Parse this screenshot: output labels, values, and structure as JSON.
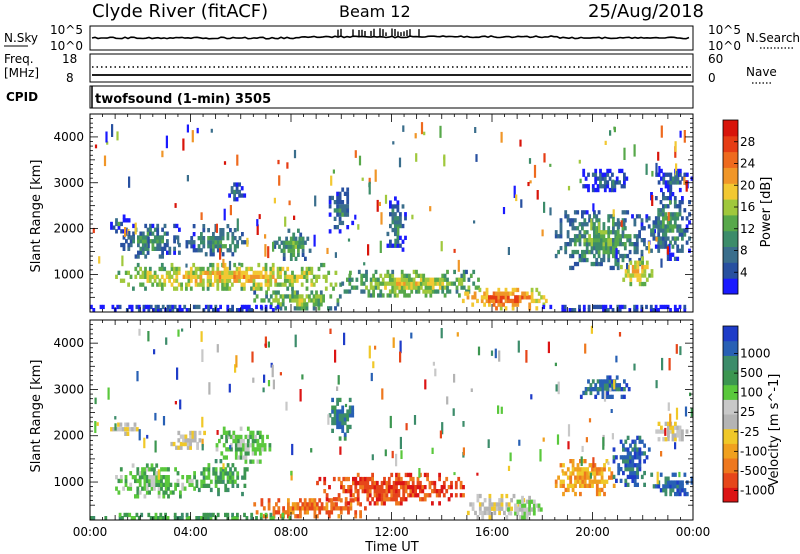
{
  "header": {
    "station": "Clyde River (fitACF)",
    "beam": "Beam 12",
    "date": "25/Aug/2018"
  },
  "nsky_panel": {
    "left_label": "N.Sky",
    "right_label": "N.Search",
    "left_ticks": [
      "10^5",
      "10^0"
    ],
    "right_ticks": [
      "10^5",
      "10^0"
    ]
  },
  "freq_panel": {
    "left_label_1": "Freq.",
    "left_label_2": "[MHz]",
    "left_ticks": [
      "18",
      "8"
    ],
    "right_ticks": [
      "60",
      "0"
    ],
    "right_label": "Nave"
  },
  "cpid_panel": {
    "label": "CPID",
    "text": "twofsound (1-min) 3505"
  },
  "chart_data": [
    {
      "type": "heatmap",
      "title": "",
      "xlabel": "",
      "ylabel": "Slant Range [km]",
      "x_ticks": [
        "00:00",
        "04:00",
        "08:00",
        "12:00",
        "16:00",
        "20:00",
        "00:00"
      ],
      "xlim_hours": [
        0,
        24
      ],
      "y_ticks": [
        1000,
        2000,
        3000,
        4000
      ],
      "ylim_km": [
        180,
        4500
      ],
      "colorbar": {
        "label": "Power [dB]",
        "ticks": [
          4,
          8,
          12,
          16,
          20,
          24,
          28
        ],
        "range": [
          0,
          32
        ],
        "colors": [
          "#1a1aff",
          "#2850a0",
          "#3a6e8c",
          "#3c8c6a",
          "#57a84a",
          "#a0c83c",
          "#f2c832",
          "#f09628",
          "#ee6a1e",
          "#e63c14",
          "#d8140a"
        ]
      },
      "regions": [
        {
          "t0": 1.0,
          "t1": 10.5,
          "r0": 650,
          "r1": 1250,
          "v": 22
        },
        {
          "t0": 1.2,
          "t1": 3.6,
          "r0": 1350,
          "r1": 2100,
          "v": 12
        },
        {
          "t0": 0.7,
          "t1": 1.6,
          "r0": 1900,
          "r1": 2300,
          "v": 8
        },
        {
          "t0": 3.8,
          "t1": 6.3,
          "r0": 1400,
          "r1": 2100,
          "v": 12
        },
        {
          "t0": 5.5,
          "t1": 6.2,
          "r0": 2600,
          "r1": 3000,
          "v": 8
        },
        {
          "t0": 7.3,
          "t1": 8.8,
          "r0": 1300,
          "r1": 2000,
          "v": 14
        },
        {
          "t0": 6.5,
          "t1": 10.0,
          "r0": 220,
          "r1": 650,
          "v": 18
        },
        {
          "t0": 10.0,
          "t1": 15.5,
          "r0": 500,
          "r1": 1100,
          "v": 19
        },
        {
          "t0": 14.8,
          "t1": 18.2,
          "r0": 220,
          "r1": 700,
          "v": 28
        },
        {
          "t0": 9.5,
          "t1": 10.5,
          "r0": 1900,
          "r1": 2900,
          "v": 10
        },
        {
          "t0": 11.8,
          "t1": 12.6,
          "r0": 1500,
          "r1": 2700,
          "v": 10
        },
        {
          "t0": 18.5,
          "t1": 22.2,
          "r0": 1100,
          "r1": 2400,
          "v": 14
        },
        {
          "t0": 21.0,
          "t1": 22.5,
          "r0": 750,
          "r1": 1400,
          "v": 23
        },
        {
          "t0": 22.2,
          "t1": 23.9,
          "r0": 1300,
          "r1": 2800,
          "v": 12
        },
        {
          "t0": 22.5,
          "t1": 24.0,
          "r0": 2800,
          "r1": 3300,
          "v": 8
        },
        {
          "t0": 19.5,
          "t1": 21.5,
          "r0": 2800,
          "r1": 3300,
          "v": 8
        },
        {
          "t0": 0.0,
          "t1": 8.0,
          "r0": 180,
          "r1": 320,
          "v": 8
        },
        {
          "t0": 18.0,
          "t1": 24.0,
          "r0": 180,
          "r1": 320,
          "v": 8
        }
      ]
    },
    {
      "type": "heatmap",
      "title": "",
      "xlabel": "Time UT",
      "ylabel": "Slant Range [km]",
      "x_ticks": [
        "00:00",
        "04:00",
        "08:00",
        "12:00",
        "16:00",
        "20:00",
        "00:00"
      ],
      "xlim_hours": [
        0,
        24
      ],
      "y_ticks": [
        1000,
        2000,
        3000,
        4000
      ],
      "ylim_km": [
        180,
        4500
      ],
      "colorbar": {
        "label": "Velocity [m s^-1]",
        "ticks": [
          "1000",
          "500",
          "100",
          "25",
          "-25",
          "-100",
          "-500",
          "-1000"
        ],
        "colors": [
          "#1e3cc8",
          "#2860b4",
          "#3c8c6a",
          "#3c9650",
          "#5ac83c",
          "#c8c8c8",
          "#b4b4b4",
          "#f0c828",
          "#f0a01e",
          "#ee781e",
          "#e6461a",
          "#dc1414"
        ]
      },
      "regions": [
        {
          "t0": 1.0,
          "t1": 4.2,
          "r0": 650,
          "r1": 1400,
          "v": 4
        },
        {
          "t0": 4.2,
          "t1": 6.3,
          "r0": 700,
          "r1": 1500,
          "v": 3
        },
        {
          "t0": 0.8,
          "t1": 2.2,
          "r0": 2000,
          "r1": 2300,
          "v": 6
        },
        {
          "t0": 3.2,
          "t1": 4.6,
          "r0": 1700,
          "r1": 2100,
          "v": 6
        },
        {
          "t0": 5.0,
          "t1": 7.2,
          "r0": 1400,
          "r1": 2200,
          "v": 4
        },
        {
          "t0": 6.5,
          "t1": 11.0,
          "r0": 220,
          "r1": 650,
          "v": 9
        },
        {
          "t0": 9.0,
          "t1": 15.0,
          "r0": 500,
          "r1": 1200,
          "v": 10
        },
        {
          "t0": 15.0,
          "t1": 17.3,
          "r0": 200,
          "r1": 750,
          "v": 6
        },
        {
          "t0": 16.6,
          "t1": 18.0,
          "r0": 200,
          "r1": 700,
          "v": 5
        },
        {
          "t0": 18.5,
          "t1": 21.0,
          "r0": 700,
          "r1": 1500,
          "v": 8
        },
        {
          "t0": 20.8,
          "t1": 22.3,
          "r0": 900,
          "r1": 2000,
          "v": 1
        },
        {
          "t0": 22.3,
          "t1": 24.0,
          "r0": 700,
          "r1": 1200,
          "v": 1
        },
        {
          "t0": 22.5,
          "t1": 23.8,
          "r0": 1800,
          "r1": 2300,
          "v": 6
        },
        {
          "t0": 19.5,
          "t1": 21.5,
          "r0": 2800,
          "r1": 3300,
          "v": 1
        },
        {
          "t0": 9.5,
          "t1": 10.5,
          "r0": 1900,
          "r1": 2900,
          "v": 2
        },
        {
          "t0": 0.0,
          "t1": 8.0,
          "r0": 180,
          "r1": 320,
          "v": 3
        }
      ]
    }
  ]
}
